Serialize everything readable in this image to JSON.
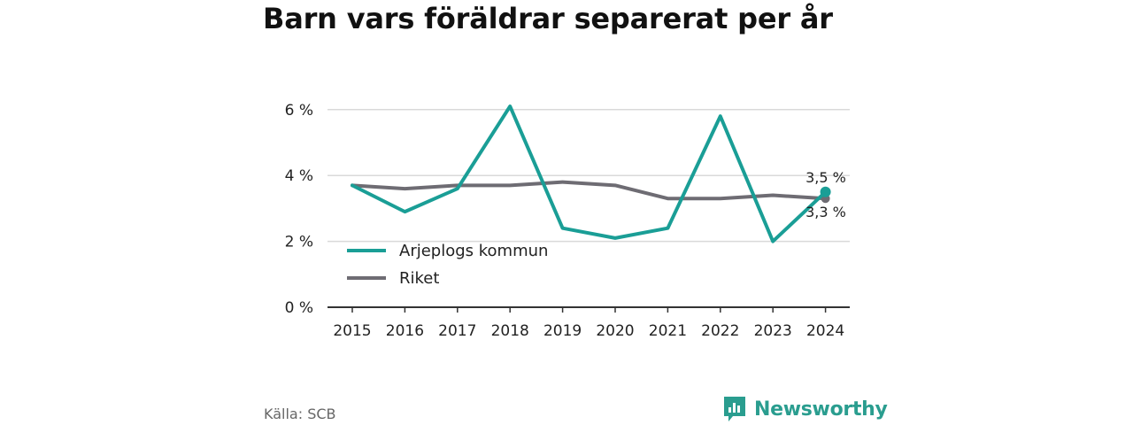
{
  "title": "Barn vars föräldrar separerat per år",
  "source": "Källa: SCB",
  "brand": {
    "name": "Newsworthy",
    "icon": "bar-chart-logo-icon"
  },
  "colors": {
    "arjeplog": "#1a9e96",
    "riket": "#6e6c73",
    "grid": "#d9d9d9",
    "axis": "#333333"
  },
  "chart_data": {
    "type": "line",
    "x": [
      2015,
      2016,
      2017,
      2018,
      2019,
      2020,
      2021,
      2022,
      2023,
      2024
    ],
    "x_tick_labels": [
      "2015",
      "2016",
      "2017",
      "2018",
      "2019",
      "2020",
      "2021",
      "2022",
      "2023",
      "2024"
    ],
    "ylim": [
      0,
      6.5
    ],
    "y_ticks": [
      0,
      2,
      4,
      6
    ],
    "y_tick_labels": [
      "0 %",
      "2 %",
      "4 %",
      "6 %"
    ],
    "grid": true,
    "legend_position": "bottom-left",
    "series": [
      {
        "name": "Arjeplogs kommun",
        "color": "#1a9e96",
        "values": [
          3.7,
          2.9,
          3.6,
          6.1,
          2.4,
          2.1,
          2.4,
          5.8,
          2.0,
          3.5
        ],
        "end_label": "3,5 %"
      },
      {
        "name": "Riket",
        "color": "#6e6c73",
        "values": [
          3.7,
          3.6,
          3.7,
          3.7,
          3.8,
          3.7,
          3.3,
          3.3,
          3.4,
          3.3
        ],
        "end_label": "3,3 %"
      }
    ]
  }
}
